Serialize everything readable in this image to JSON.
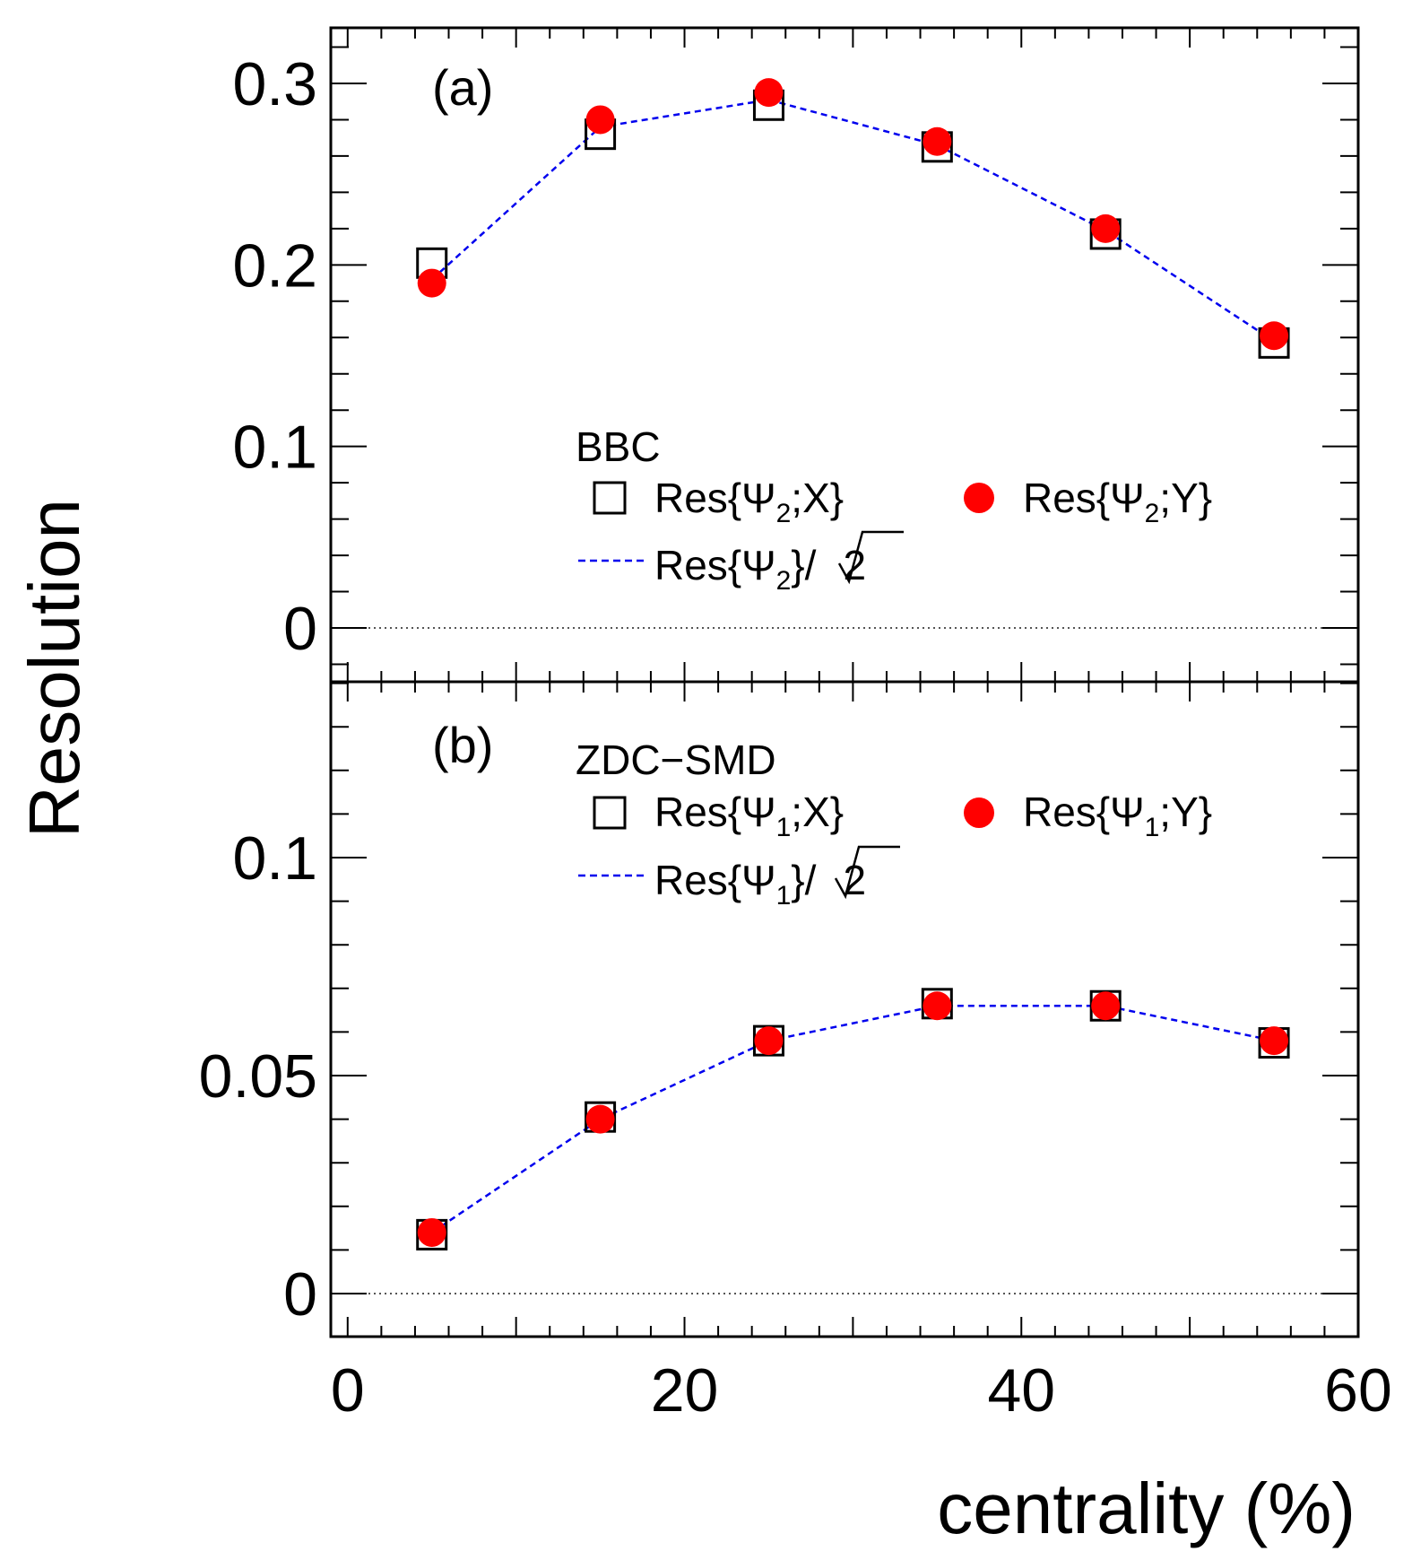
{
  "chart_data": [
    {
      "type": "scatter",
      "panel": "(a)",
      "detector": "BBC",
      "x": [
        5,
        15,
        25,
        35,
        45,
        55
      ],
      "ylim": [
        -0.03,
        0.33
      ],
      "yticks": [
        "0",
        "0.1",
        "0.2",
        "0.3"
      ],
      "series": [
        {
          "name": "Res{Ψ2;X}",
          "marker": "open-square",
          "color": "#000000",
          "values": [
            0.201,
            0.272,
            0.288,
            0.265,
            0.217,
            0.157
          ]
        },
        {
          "name": "Res{Ψ2;Y}",
          "marker": "filled-circle",
          "color": "#ff0000",
          "values": [
            0.19,
            0.28,
            0.295,
            0.268,
            0.22,
            0.161
          ]
        },
        {
          "name": "Res{Ψ2}/√2",
          "marker": "dashed-line",
          "color": "#0000ee",
          "values": [
            0.192,
            0.276,
            0.291,
            0.266,
            0.219,
            0.158
          ]
        }
      ],
      "legend": {
        "title": "BBC",
        "x_label": {
          "main": "Res{Ψ",
          "sub": "2",
          "tail": ";X}"
        },
        "y_label": {
          "main": "Res{Ψ",
          "sub": "2",
          "tail": ";Y}"
        },
        "line_label": {
          "main": "Res{Ψ",
          "sub": "2",
          "tail": "}/",
          "root": "2"
        }
      }
    },
    {
      "type": "scatter",
      "panel": "(b)",
      "detector": "ZDC−SMD",
      "x": [
        5,
        15,
        25,
        35,
        45,
        55
      ],
      "ylim": [
        -0.01,
        0.14
      ],
      "yticks": [
        "0",
        "0.05",
        "0.1"
      ],
      "series": [
        {
          "name": "Res{Ψ1;X}",
          "marker": "open-square",
          "color": "#000000",
          "values": [
            0.0135,
            0.0405,
            0.058,
            0.0665,
            0.066,
            0.0575
          ]
        },
        {
          "name": "Res{Ψ1;Y}",
          "marker": "filled-circle",
          "color": "#ff0000",
          "values": [
            0.014,
            0.04,
            0.058,
            0.066,
            0.066,
            0.058
          ]
        },
        {
          "name": "Res{Ψ1}/√2",
          "marker": "dashed-line",
          "color": "#0000ee",
          "values": [
            0.014,
            0.04,
            0.058,
            0.066,
            0.066,
            0.058
          ]
        }
      ],
      "legend": {
        "title": "ZDC−SMD",
        "x_label": {
          "main": "Res{Ψ",
          "sub": "1",
          "tail": ";X}"
        },
        "y_label": {
          "main": "Res{Ψ",
          "sub": "1",
          "tail": ";Y}"
        },
        "line_label": {
          "main": "Res{Ψ",
          "sub": "1",
          "tail": "}/",
          "root": "2"
        }
      }
    }
  ],
  "axes": {
    "xlabel": "centrality (%)",
    "ylabel": "Resolution",
    "xlim": [
      -1,
      60
    ],
    "xticks": [
      "0",
      "20",
      "40",
      "60"
    ]
  }
}
